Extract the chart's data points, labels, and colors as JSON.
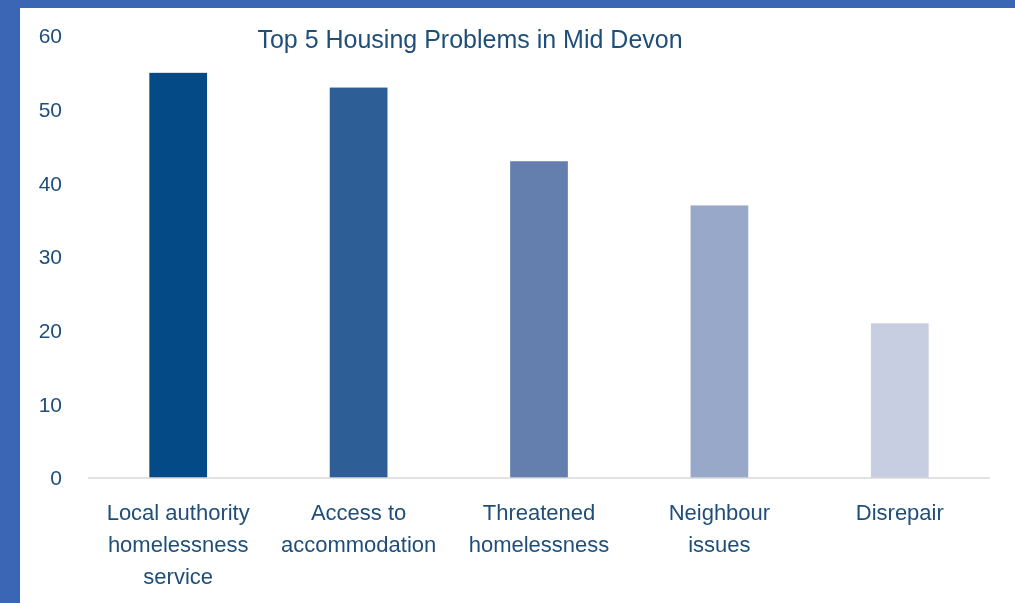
{
  "chart_data": {
    "type": "bar",
    "title": "Top 5 Housing Problems in Mid Devon",
    "categories": [
      "Local authority homelessness service",
      "Access to accommodation",
      "Threatened homelessness",
      "Neighbour issues",
      "Disrepair"
    ],
    "values": [
      55,
      53,
      43,
      37,
      21
    ],
    "colors": [
      "#044a87",
      "#2d5f96",
      "#647fae",
      "#98a8c9",
      "#c8cee2"
    ],
    "ylim": [
      0,
      60
    ],
    "yticks": [
      0,
      10,
      20,
      30,
      40,
      50,
      60
    ],
    "grid": false
  }
}
